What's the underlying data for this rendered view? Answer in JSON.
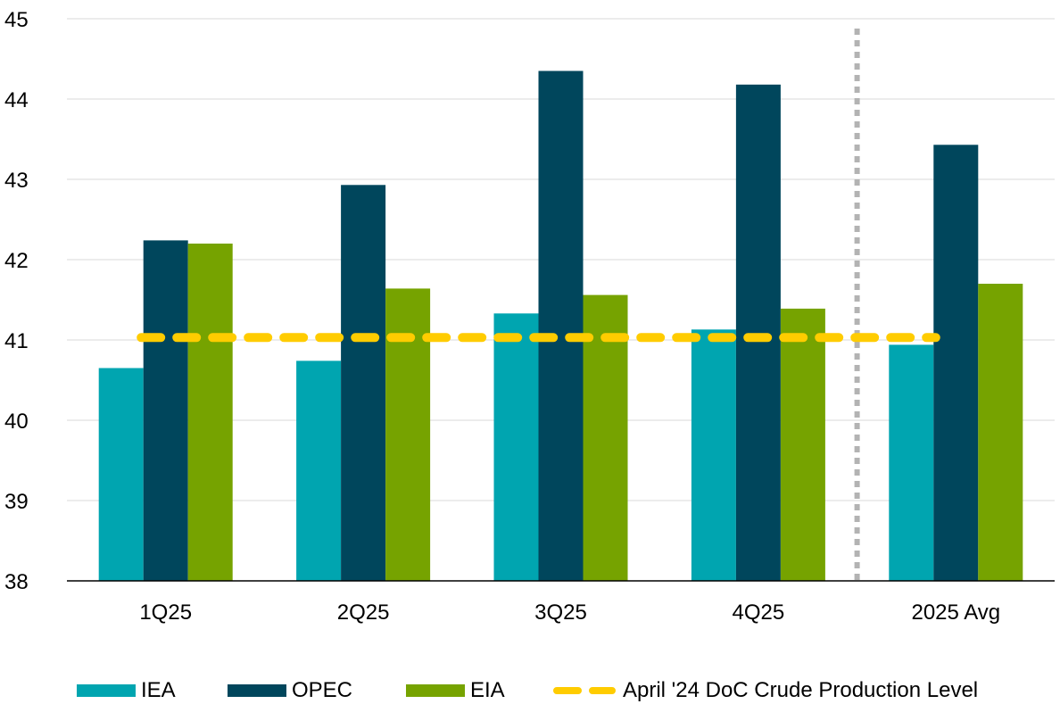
{
  "chart_data": {
    "type": "bar",
    "categories": [
      "1Q25",
      "2Q25",
      "3Q25",
      "4Q25",
      "2025 Avg"
    ],
    "series": [
      {
        "name": "IEA",
        "color": "#00A5B0",
        "values": [
          40.65,
          40.74,
          41.33,
          41.13,
          40.94
        ]
      },
      {
        "name": "OPEC",
        "color": "#00465C",
        "values": [
          42.24,
          42.93,
          44.35,
          44.18,
          43.43
        ]
      },
      {
        "name": "EIA",
        "color": "#76A300",
        "values": [
          42.2,
          41.64,
          41.56,
          41.39,
          41.7
        ]
      }
    ],
    "reference_line": {
      "name": "April '24 DoC Crude Production Level",
      "value": 41.03,
      "color": "#FFCC00",
      "style": "dashed"
    },
    "separator": {
      "between": [
        "4Q25",
        "2025 Avg"
      ],
      "color": "#B3B3B3",
      "style": "dotted"
    },
    "ylim": [
      38,
      45
    ],
    "yticks": [
      "38",
      "39",
      "40",
      "41",
      "42",
      "43",
      "44",
      "45"
    ],
    "grid": true,
    "legend_position": "bottom",
    "title": "",
    "xlabel": "",
    "ylabel": ""
  }
}
